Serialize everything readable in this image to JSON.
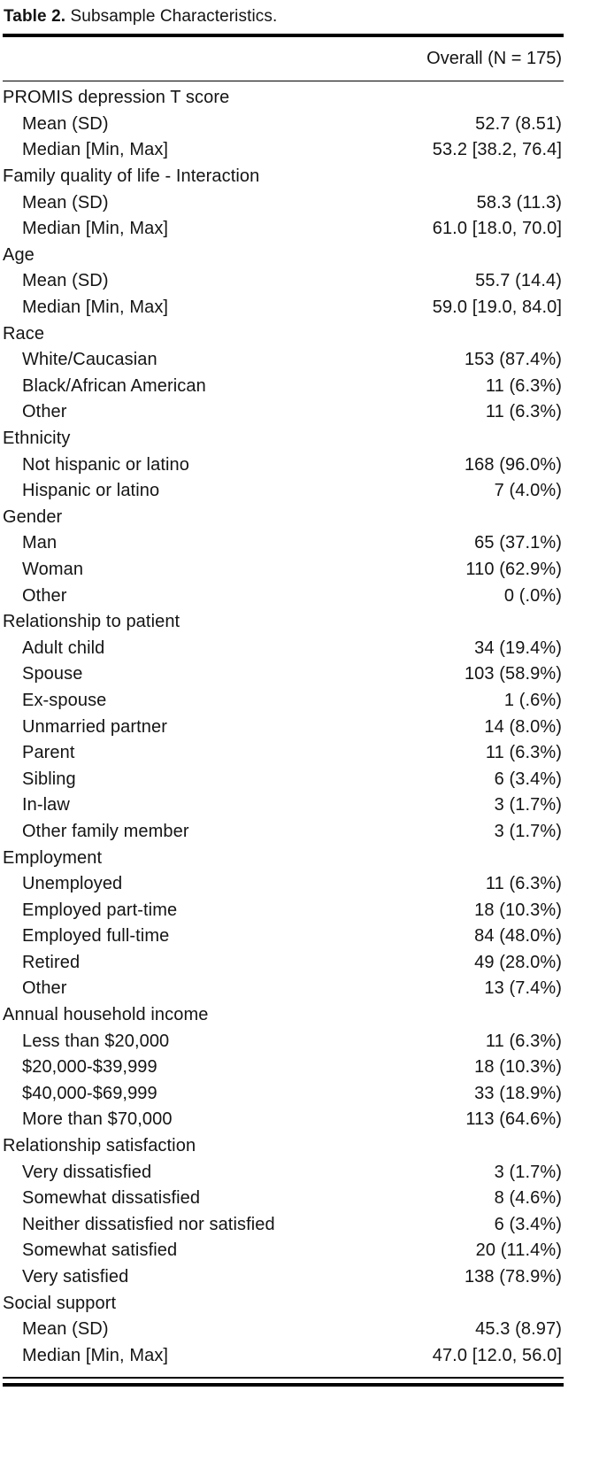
{
  "title": {
    "label": "Table 2.",
    "caption": "Subsample Characteristics."
  },
  "table": {
    "header": "Overall (N = 175)",
    "sections": [
      {
        "label": "PROMIS depression T score",
        "rows": [
          {
            "label": "Mean (SD)",
            "value": "52.7 (8.51)"
          },
          {
            "label": "Median [Min, Max]",
            "value": "53.2 [38.2, 76.4]"
          }
        ]
      },
      {
        "label": "Family quality of life - Interaction",
        "rows": [
          {
            "label": "Mean (SD)",
            "value": "58.3 (11.3)"
          },
          {
            "label": "Median [Min, Max]",
            "value": "61.0 [18.0, 70.0]"
          }
        ]
      },
      {
        "label": "Age",
        "rows": [
          {
            "label": "Mean (SD)",
            "value": "55.7 (14.4)"
          },
          {
            "label": "Median [Min, Max]",
            "value": "59.0 [19.0, 84.0]"
          }
        ]
      },
      {
        "label": "Race",
        "rows": [
          {
            "label": "White/Caucasian",
            "value": "153 (87.4%)"
          },
          {
            "label": "Black/African American",
            "value": "11 (6.3%)"
          },
          {
            "label": "Other",
            "value": "11 (6.3%)"
          }
        ]
      },
      {
        "label": "Ethnicity",
        "rows": [
          {
            "label": "Not hispanic or latino",
            "value": "168 (96.0%)"
          },
          {
            "label": "Hispanic or latino",
            "value": "7 (4.0%)"
          }
        ]
      },
      {
        "label": "Gender",
        "rows": [
          {
            "label": "Man",
            "value": "65 (37.1%)"
          },
          {
            "label": "Woman",
            "value": "110 (62.9%)"
          },
          {
            "label": "Other",
            "value": "0 (.0%)"
          }
        ]
      },
      {
        "label": "Relationship to patient",
        "rows": [
          {
            "label": "Adult child",
            "value": "34 (19.4%)"
          },
          {
            "label": "Spouse",
            "value": "103 (58.9%)"
          },
          {
            "label": "Ex-spouse",
            "value": "1 (.6%)"
          },
          {
            "label": "Unmarried partner",
            "value": "14 (8.0%)"
          },
          {
            "label": "Parent",
            "value": "11 (6.3%)"
          },
          {
            "label": "Sibling",
            "value": "6 (3.4%)"
          },
          {
            "label": "In-law",
            "value": "3 (1.7%)"
          },
          {
            "label": "Other family member",
            "value": "3 (1.7%)"
          }
        ]
      },
      {
        "label": "Employment",
        "rows": [
          {
            "label": "Unemployed",
            "value": "11 (6.3%)"
          },
          {
            "label": "Employed part-time",
            "value": "18 (10.3%)"
          },
          {
            "label": "Employed full-time",
            "value": "84 (48.0%)"
          },
          {
            "label": "Retired",
            "value": "49 (28.0%)"
          },
          {
            "label": "Other",
            "value": "13 (7.4%)"
          }
        ]
      },
      {
        "label": "Annual household income",
        "rows": [
          {
            "label": "Less than $20,000",
            "value": "11 (6.3%)"
          },
          {
            "label": "$20,000-$39,999",
            "value": "18 (10.3%)"
          },
          {
            "label": "$40,000-$69,999",
            "value": "33 (18.9%)"
          },
          {
            "label": "More than $70,000",
            "value": "113 (64.6%)"
          }
        ]
      },
      {
        "label": "Relationship satisfaction",
        "rows": [
          {
            "label": "Very dissatisfied",
            "value": "3 (1.7%)"
          },
          {
            "label": "Somewhat dissatisfied",
            "value": "8 (4.6%)"
          },
          {
            "label": "Neither dissatisfied nor satisfied",
            "value": "6 (3.4%)"
          },
          {
            "label": "Somewhat satisfied",
            "value": "20 (11.4%)"
          },
          {
            "label": "Very satisfied",
            "value": "138 (78.9%)"
          }
        ]
      },
      {
        "label": "Social support",
        "rows": [
          {
            "label": "Mean (SD)",
            "value": "45.3 (8.97)"
          },
          {
            "label": "Median [Min, Max]",
            "value": "47.0 [12.0, 56.0]"
          }
        ]
      }
    ]
  }
}
